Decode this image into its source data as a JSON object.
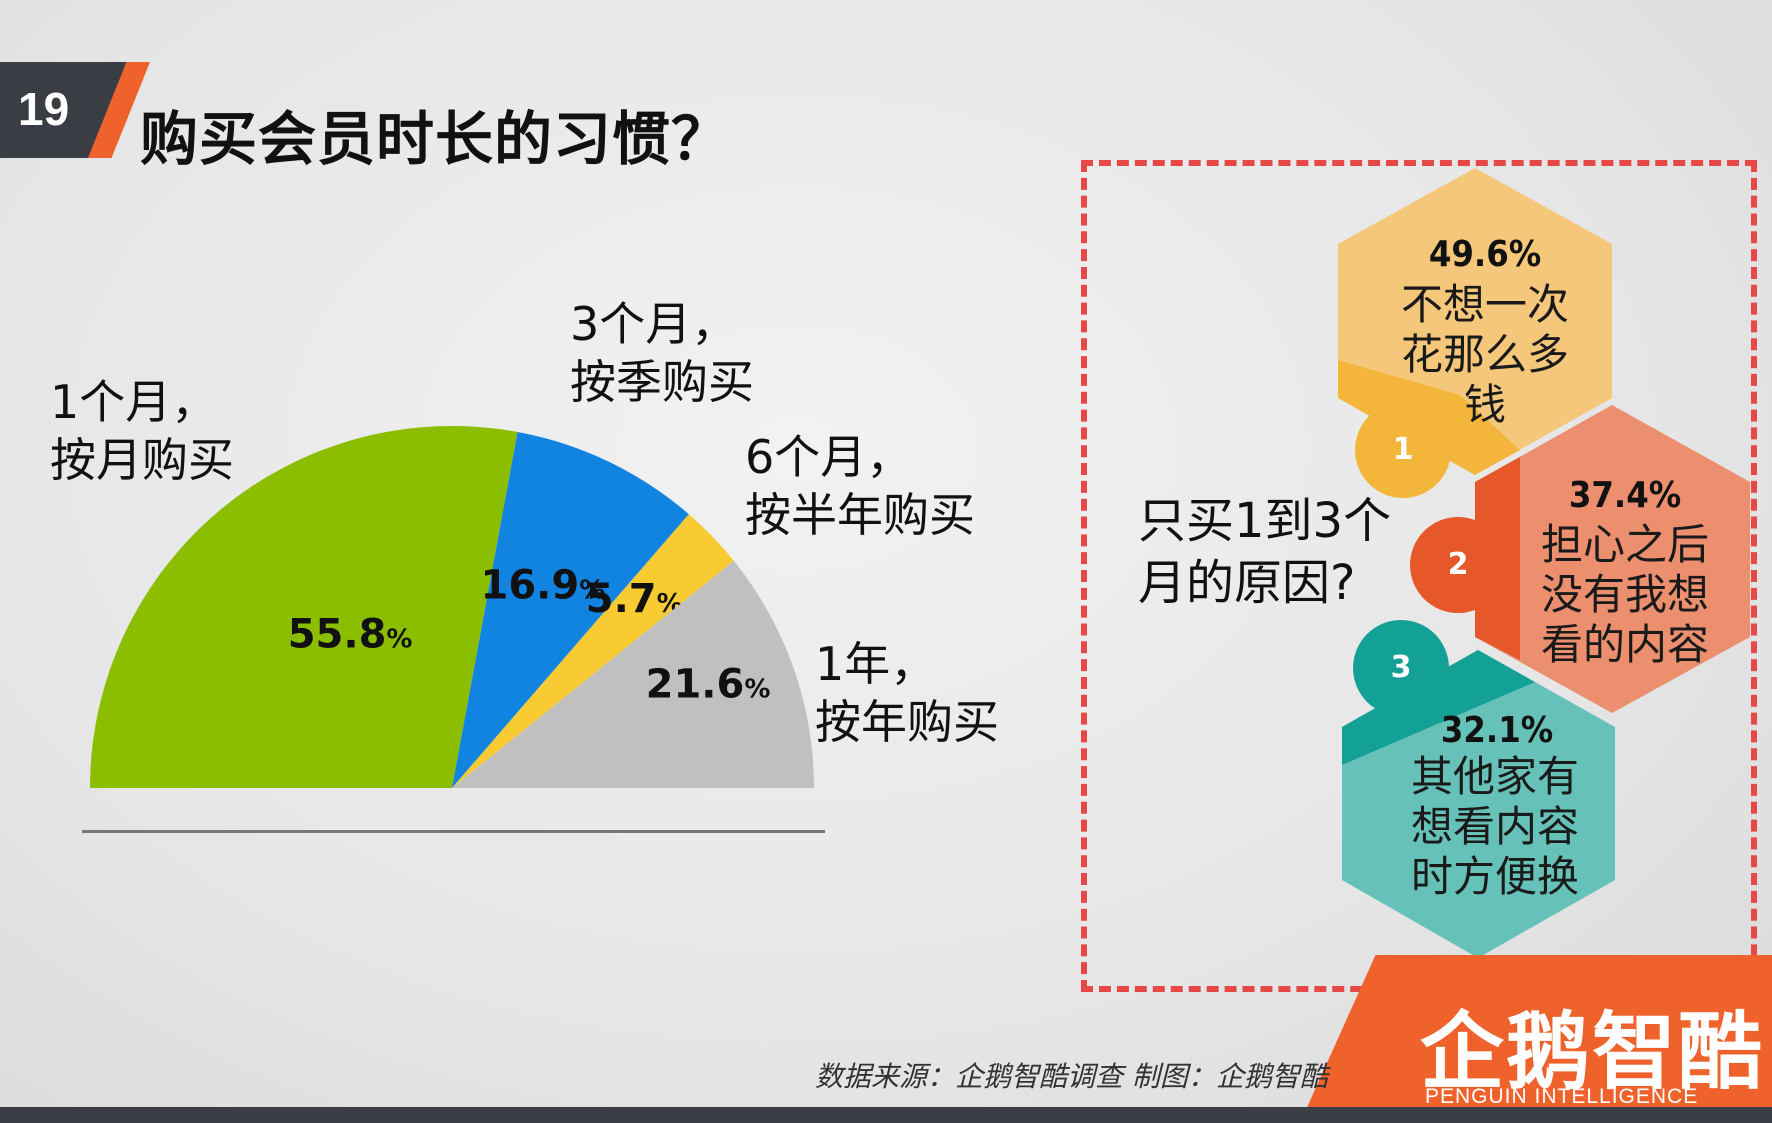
{
  "page_number": "19",
  "title": "购买会员时长的习惯？",
  "chart_data": {
    "type": "pie",
    "subtype": "semicircle",
    "slices": [
      {
        "label": "1个月，按月购买",
        "value": 55.8,
        "color": "#8cbe00"
      },
      {
        "label": "3个月，按季购买",
        "value": 16.9,
        "color": "#1184e2"
      },
      {
        "label": "6个月，按半年购买",
        "value": 5.7,
        "color": "#f9cb32"
      },
      {
        "label": "1年，按年购买",
        "value": 21.6,
        "color": "#c0c0c0"
      }
    ],
    "value_suffix": "%"
  },
  "category_labels": [
    {
      "line1": "1个月，",
      "line2": "按月购买"
    },
    {
      "line1": "3个月，",
      "line2": "按季购买"
    },
    {
      "line1": "6个月，",
      "line2": "按半年购买"
    },
    {
      "line1": "1年，",
      "line2": "按年购买"
    }
  ],
  "reasons_panel": {
    "question_line1": "只买1到3个",
    "question_line2": "月的原因?",
    "items": [
      {
        "badge": "1",
        "pct": "49.6%",
        "lines": [
          "不想一次",
          "花那么多",
          "钱"
        ],
        "color": "#f4c77a",
        "badge_color": "#f4b53b"
      },
      {
        "badge": "2",
        "pct": "37.4%",
        "lines": [
          "担心之后",
          "没有我想",
          "看的内容"
        ],
        "color": "#ec8f6e",
        "badge_color": "#e6582a"
      },
      {
        "badge": "3",
        "pct": "32.1%",
        "lines": [
          "其他家有",
          "想看内容",
          "时方便换"
        ],
        "color": "#66c1b8",
        "badge_color": "#14a195"
      }
    ]
  },
  "source": "数据来源：企鹅智酷调查    制图：企鹅智酷",
  "logo": {
    "name": "企鹅智酷",
    "sub": "PENGUIN INTELLIGENCE"
  }
}
